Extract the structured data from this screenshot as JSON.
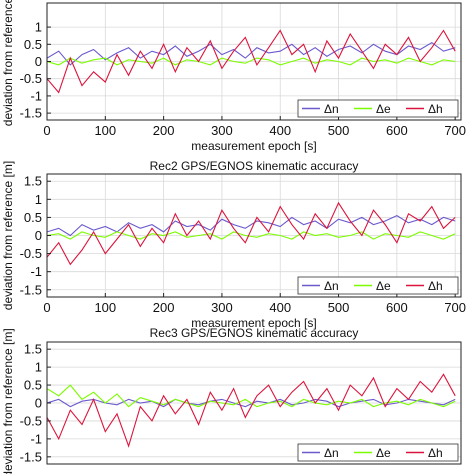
{
  "chart_data": [
    {
      "type": "line",
      "title": "",
      "xlabel": "measurement epoch [s]",
      "ylabel": "deviation from reference",
      "xlim": [
        0,
        710
      ],
      "ylim": [
        -1.7,
        1.7
      ],
      "xticks": [
        0,
        100,
        200,
        300,
        400,
        500,
        600,
        700
      ],
      "yticks": [
        -1.5,
        -1,
        -0.5,
        0,
        0.5,
        1
      ],
      "ytick_labels": [
        "-1.5",
        "-1",
        "-0.5",
        "0",
        "0.5",
        "1"
      ],
      "grid": true,
      "legend_position": "bottom-right",
      "x": [
        0,
        20,
        40,
        60,
        80,
        100,
        120,
        140,
        160,
        180,
        200,
        220,
        240,
        260,
        280,
        300,
        320,
        340,
        360,
        380,
        400,
        420,
        440,
        460,
        480,
        500,
        520,
        540,
        560,
        580,
        600,
        620,
        640,
        660,
        680,
        700
      ],
      "series": [
        {
          "name": "Δn",
          "color": "#6a5acd",
          "values": [
            0.1,
            0.3,
            -0.1,
            0.2,
            0.35,
            0.05,
            0.25,
            0.4,
            0.1,
            0.3,
            0.2,
            0.45,
            0.15,
            0.3,
            0.5,
            0.2,
            0.35,
            0.1,
            0.4,
            0.25,
            0.3,
            0.5,
            0.2,
            0.4,
            0.15,
            0.35,
            0.45,
            0.25,
            0.5,
            0.3,
            0.2,
            0.45,
            0.35,
            0.55,
            0.3,
            0.4
          ]
        },
        {
          "name": "Δe",
          "color": "#7cfc00",
          "values": [
            0.0,
            -0.1,
            0.1,
            -0.05,
            0.05,
            0.1,
            -0.1,
            0.05,
            0.0,
            -0.05,
            0.1,
            -0.1,
            0.05,
            0.0,
            -0.1,
            0.1,
            0.0,
            -0.05,
            0.1,
            0.05,
            -0.1,
            0.0,
            0.1,
            -0.05,
            0.05,
            0.0,
            -0.1,
            0.1,
            0.0,
            0.05,
            -0.05,
            0.1,
            0.0,
            -0.1,
            0.05,
            0.0
          ]
        },
        {
          "name": "Δh",
          "color": "#dc143c",
          "values": [
            -0.5,
            -0.9,
            0.1,
            -0.7,
            -0.3,
            -0.6,
            0.2,
            -0.4,
            0.3,
            -0.2,
            0.5,
            -0.3,
            0.4,
            0.0,
            0.6,
            -0.2,
            0.3,
            0.7,
            -0.1,
            0.4,
            0.9,
            0.2,
            0.5,
            -0.3,
            0.6,
            0.1,
            0.8,
            0.3,
            -0.2,
            0.5,
            0.2,
            0.7,
            0.0,
            0.4,
            0.9,
            0.3
          ]
        }
      ]
    },
    {
      "type": "line",
      "title": "Rec2 GPS/EGNOS kinematic accuracy",
      "xlabel": "measurement epoch [s]",
      "ylabel": "deviation from reference [m]",
      "xlim": [
        0,
        710
      ],
      "ylim": [
        -1.7,
        1.7
      ],
      "xticks": [
        0,
        100,
        200,
        300,
        400,
        500,
        600,
        700
      ],
      "yticks": [
        -1.5,
        -1,
        -0.5,
        0,
        0.5,
        1,
        1.5
      ],
      "ytick_labels": [
        "-1.5",
        "-1",
        "-0.5",
        "0",
        "0.5",
        "1",
        "1.5"
      ],
      "grid": true,
      "legend_position": "bottom-right",
      "x": [
        0,
        20,
        40,
        60,
        80,
        100,
        120,
        140,
        160,
        180,
        200,
        220,
        240,
        260,
        280,
        300,
        320,
        340,
        360,
        380,
        400,
        420,
        440,
        460,
        480,
        500,
        520,
        540,
        560,
        580,
        600,
        620,
        640,
        660,
        680,
        700
      ],
      "series": [
        {
          "name": "Δn",
          "color": "#6a5acd",
          "values": [
            0.1,
            0.2,
            0.0,
            0.3,
            0.15,
            0.25,
            0.1,
            0.35,
            0.2,
            0.3,
            0.1,
            0.4,
            0.25,
            0.3,
            0.15,
            0.45,
            0.3,
            0.2,
            0.4,
            0.35,
            0.25,
            0.5,
            0.3,
            0.4,
            0.2,
            0.45,
            0.35,
            0.5,
            0.3,
            0.4,
            0.55,
            0.35,
            0.45,
            0.3,
            0.5,
            0.4
          ]
        },
        {
          "name": "Δe",
          "color": "#7cfc00",
          "values": [
            0.0,
            0.05,
            -0.1,
            0.1,
            0.0,
            -0.05,
            0.1,
            0.0,
            -0.1,
            0.05,
            0.0,
            0.1,
            -0.05,
            0.0,
            0.05,
            -0.1,
            0.1,
            0.0,
            -0.05,
            0.05,
            0.0,
            -0.1,
            0.1,
            0.0,
            0.05,
            -0.05,
            0.0,
            0.1,
            -0.1,
            0.05,
            0.0,
            -0.05,
            0.1,
            0.0,
            -0.1,
            0.05
          ]
        },
        {
          "name": "Δh",
          "color": "#dc143c",
          "values": [
            -0.6,
            -0.2,
            -0.8,
            -0.4,
            0.1,
            -0.5,
            -0.1,
            0.3,
            -0.3,
            0.2,
            -0.2,
            0.6,
            0.0,
            0.4,
            -0.1,
            0.7,
            0.2,
            -0.2,
            0.5,
            0.1,
            0.8,
            0.3,
            -0.1,
            0.6,
            0.2,
            0.9,
            0.4,
            0.0,
            0.7,
            0.3,
            -0.2,
            0.6,
            0.4,
            0.8,
            0.2,
            0.5
          ]
        }
      ]
    },
    {
      "type": "line",
      "title": "Rec3 GPS/EGNOS kinematic accuracy",
      "xlabel": "",
      "ylabel": "deviation from reference [m]",
      "xlim": [
        0,
        710
      ],
      "ylim": [
        -1.7,
        1.7
      ],
      "xticks": [],
      "yticks": [
        -1.5,
        -1,
        -0.5,
        0,
        0.5,
        1,
        1.5
      ],
      "ytick_labels": [
        "-1.5",
        "-1",
        "-0.5",
        "0",
        "0.5",
        "1",
        "1.5"
      ],
      "grid": true,
      "legend_position": "bottom-right",
      "x": [
        0,
        20,
        40,
        60,
        80,
        100,
        120,
        140,
        160,
        180,
        200,
        220,
        240,
        260,
        280,
        300,
        320,
        340,
        360,
        380,
        400,
        420,
        440,
        460,
        480,
        500,
        520,
        540,
        560,
        580,
        600,
        620,
        640,
        660,
        680,
        700
      ],
      "series": [
        {
          "name": "Δn",
          "color": "#6a5acd",
          "values": [
            0.0,
            0.1,
            -0.1,
            0.05,
            0.1,
            0.0,
            -0.05,
            0.1,
            0.0,
            0.05,
            -0.1,
            0.1,
            0.0,
            -0.05,
            0.05,
            0.1,
            0.0,
            -0.1,
            0.05,
            0.0,
            0.1,
            -0.05,
            0.0,
            0.1,
            0.05,
            -0.1,
            0.0,
            0.05,
            0.1,
            -0.05,
            0.0,
            0.1,
            0.05,
            0.0,
            -0.05,
            0.1
          ]
        },
        {
          "name": "Δe",
          "color": "#7cfc00",
          "values": [
            0.4,
            0.2,
            0.5,
            0.1,
            0.3,
            0.0,
            0.25,
            -0.1,
            0.15,
            0.05,
            -0.05,
            0.1,
            0.0,
            -0.1,
            0.05,
            0.0,
            -0.05,
            0.1,
            -0.1,
            0.0,
            0.05,
            -0.1,
            0.1,
            0.0,
            -0.05,
            0.05,
            0.0,
            0.1,
            -0.1,
            0.0,
            0.05,
            -0.05,
            0.1,
            0.0,
            -0.1,
            0.05
          ]
        },
        {
          "name": "Δh",
          "color": "#dc143c",
          "values": [
            -0.4,
            -1.0,
            -0.2,
            -0.6,
            0.1,
            -0.8,
            -0.3,
            -1.2,
            -0.1,
            -0.5,
            0.2,
            -0.3,
            0.1,
            -0.6,
            0.3,
            -0.2,
            0.4,
            -0.4,
            0.2,
            0.5,
            -0.1,
            0.3,
            0.6,
            0.0,
            0.4,
            -0.2,
            0.5,
            0.2,
            0.7,
            -0.1,
            0.4,
            0.1,
            0.6,
            0.3,
            0.8,
            0.2
          ]
        }
      ]
    }
  ]
}
